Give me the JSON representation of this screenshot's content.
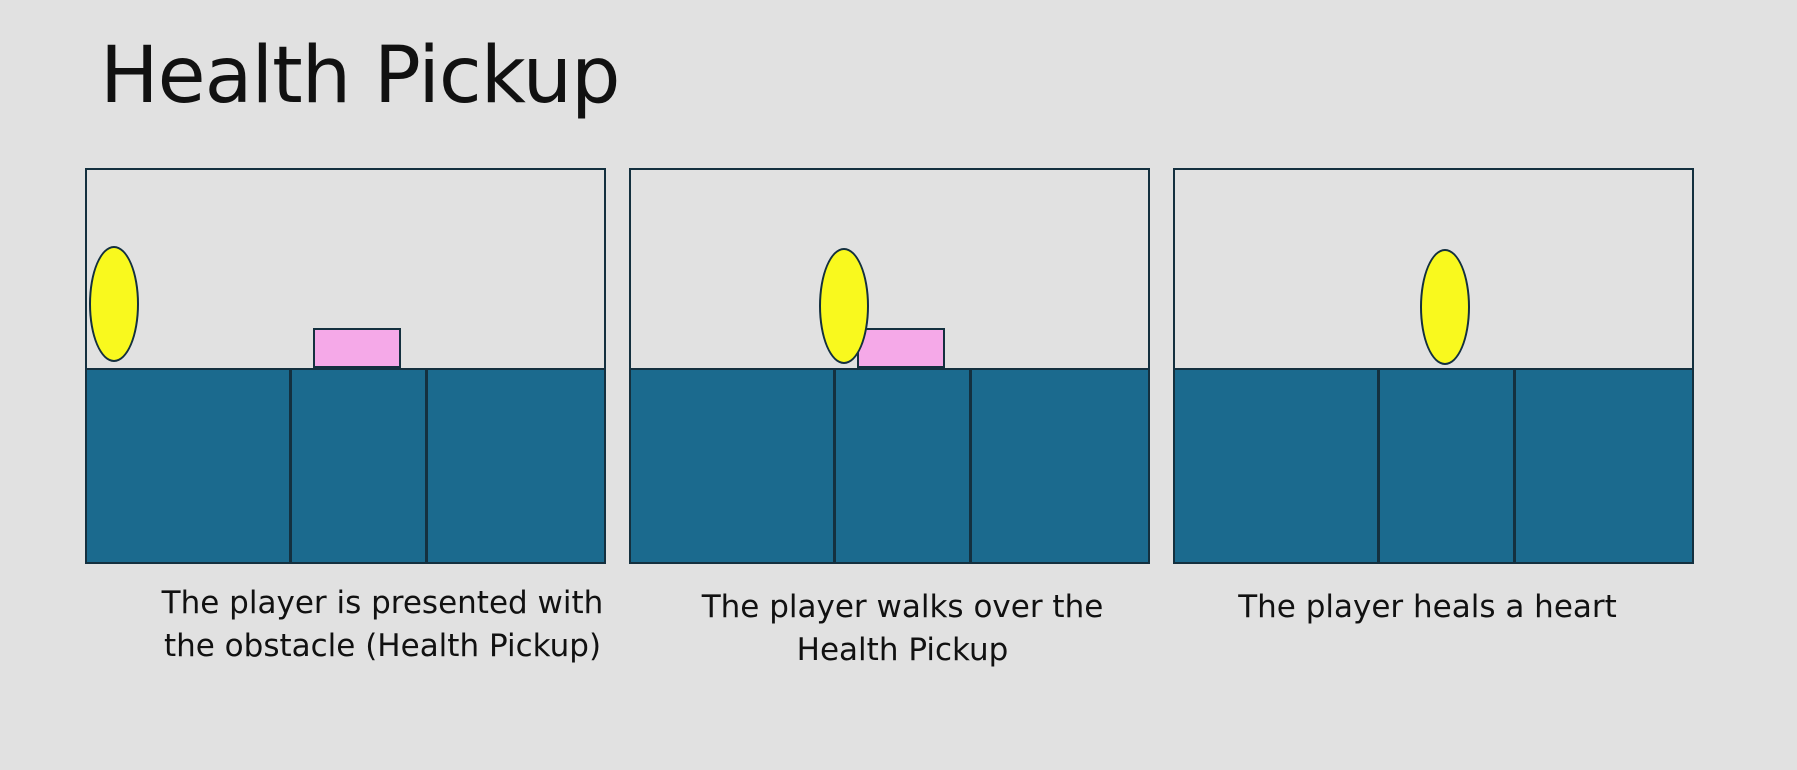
{
  "title": "Health Pickup",
  "colors": {
    "background": "#e1e1e1",
    "ground": "#1b6a8e",
    "outline": "#14303f",
    "player": "#f9f91e",
    "pickup": "#f5a9e8"
  },
  "panels": [
    {
      "caption": "The player is presented with the obstacle (Health Pickup)",
      "player_position": "left edge",
      "pickup_visible": true
    },
    {
      "caption": "The player walks over the Health Pickup",
      "player_position": "over the pickup",
      "pickup_visible": true
    },
    {
      "caption": "The player heals a heart",
      "player_position": "middle tile",
      "pickup_visible": false
    }
  ]
}
